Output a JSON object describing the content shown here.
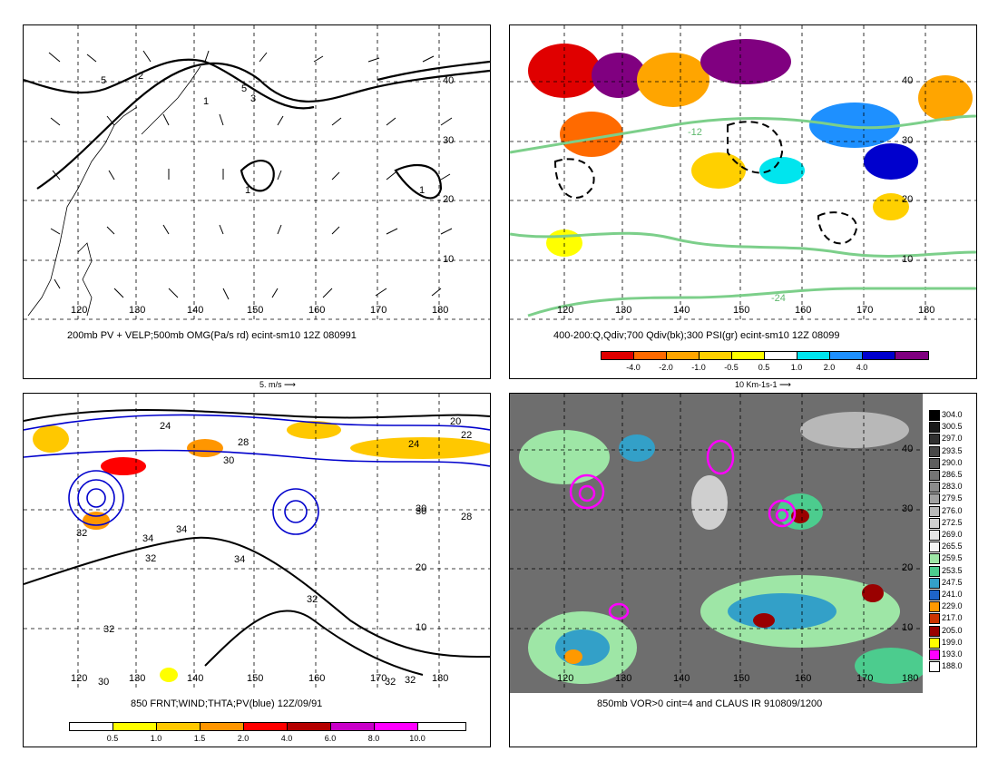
{
  "panels": [
    {
      "id": "p1",
      "title": "200mb PV + VELP;500mb OMG(Pa/s rd) ecint-sm10 12Z 080991",
      "lon_labels": [
        "120",
        "130",
        "140",
        "150",
        "160",
        "170",
        "180"
      ],
      "lat_labels": [
        "40",
        "30",
        "20",
        "10"
      ],
      "contour_labels": [
        "2",
        "5",
        "3",
        "5",
        "1",
        "1",
        "1"
      ],
      "vector_key": "5. m/s"
    },
    {
      "id": "p2",
      "title": "400-200:Q,Qdiv;700 Qdiv(bk);300 PSI(gr) ecint-sm10 12Z 08099",
      "lon_labels": [
        "120",
        "130",
        "140",
        "150",
        "160",
        "170",
        "180"
      ],
      "lat_labels": [
        "40",
        "30",
        "20",
        "10"
      ],
      "contour_labels": [
        "-12",
        "-24"
      ],
      "vector_key": "10 Km-1s-1",
      "colorbar": {
        "ticks": [
          "-4.0",
          "-2.0",
          "-1.0",
          "-0.5",
          "0.5",
          "1.0",
          "2.0",
          "4.0"
        ],
        "colors": [
          "#e00000",
          "#ff6a00",
          "#ffa500",
          "#ffd000",
          "#ffff00",
          "#ffffff",
          "#00e5ee",
          "#1e90ff",
          "#0000cd",
          "#800080"
        ]
      }
    },
    {
      "id": "p3",
      "title": "850 FRNT;WIND;THTA;PV(blue) 12Z/09/91",
      "lon_labels": [
        "120",
        "130",
        "140",
        "150",
        "160",
        "170",
        "180"
      ],
      "lat_labels": [
        "30",
        "20",
        "10"
      ],
      "contour_labels": [
        "24",
        "22",
        "20",
        "28",
        "30",
        "24",
        "30",
        "28",
        "34",
        "32",
        "34",
        "34",
        "32",
        "32",
        "32",
        "30",
        "32",
        "32"
      ],
      "colorbar": {
        "ticks": [
          "0.5",
          "1.0",
          "1.5",
          "2.0",
          "4.0",
          "6.0",
          "8.0",
          "10.0"
        ],
        "colors": [
          "#ffffff",
          "#ffff00",
          "#ffc800",
          "#ff9600",
          "#ff0000",
          "#b40000",
          "#c800c8",
          "#ff00ff",
          "#ffffff"
        ]
      }
    },
    {
      "id": "p4",
      "title": "850mb VOR>0 cint=4 and CLAUS IR 910809/1200",
      "lon_labels": [
        "120",
        "130",
        "140",
        "150",
        "160",
        "170",
        "180"
      ],
      "lat_labels": [
        "40",
        "30",
        "20",
        "10"
      ],
      "colorbar": {
        "ticks": [
          "304.0",
          "300.5",
          "297.0",
          "293.5",
          "290.0",
          "286.5",
          "283.0",
          "279.5",
          "276.0",
          "272.5",
          "269.0",
          "265.5",
          "259.5",
          "253.5",
          "247.5",
          "241.0",
          "229.0",
          "217.0",
          "205.0",
          "199.0",
          "193.0",
          "188.0"
        ],
        "colors": [
          "#000000",
          "#1a1a1a",
          "#303030",
          "#474747",
          "#5e5e5e",
          "#747474",
          "#8b8b8b",
          "#a1a1a1",
          "#b8b8b8",
          "#cfcfcf",
          "#e5e5e5",
          "#f5f5f5",
          "#9ee6a6",
          "#4ccc8e",
          "#33a0c8",
          "#1e64c8",
          "#ff9900",
          "#cc3300",
          "#990000",
          "#ffff00",
          "#ff00ff",
          "#ffffff"
        ]
      }
    }
  ]
}
